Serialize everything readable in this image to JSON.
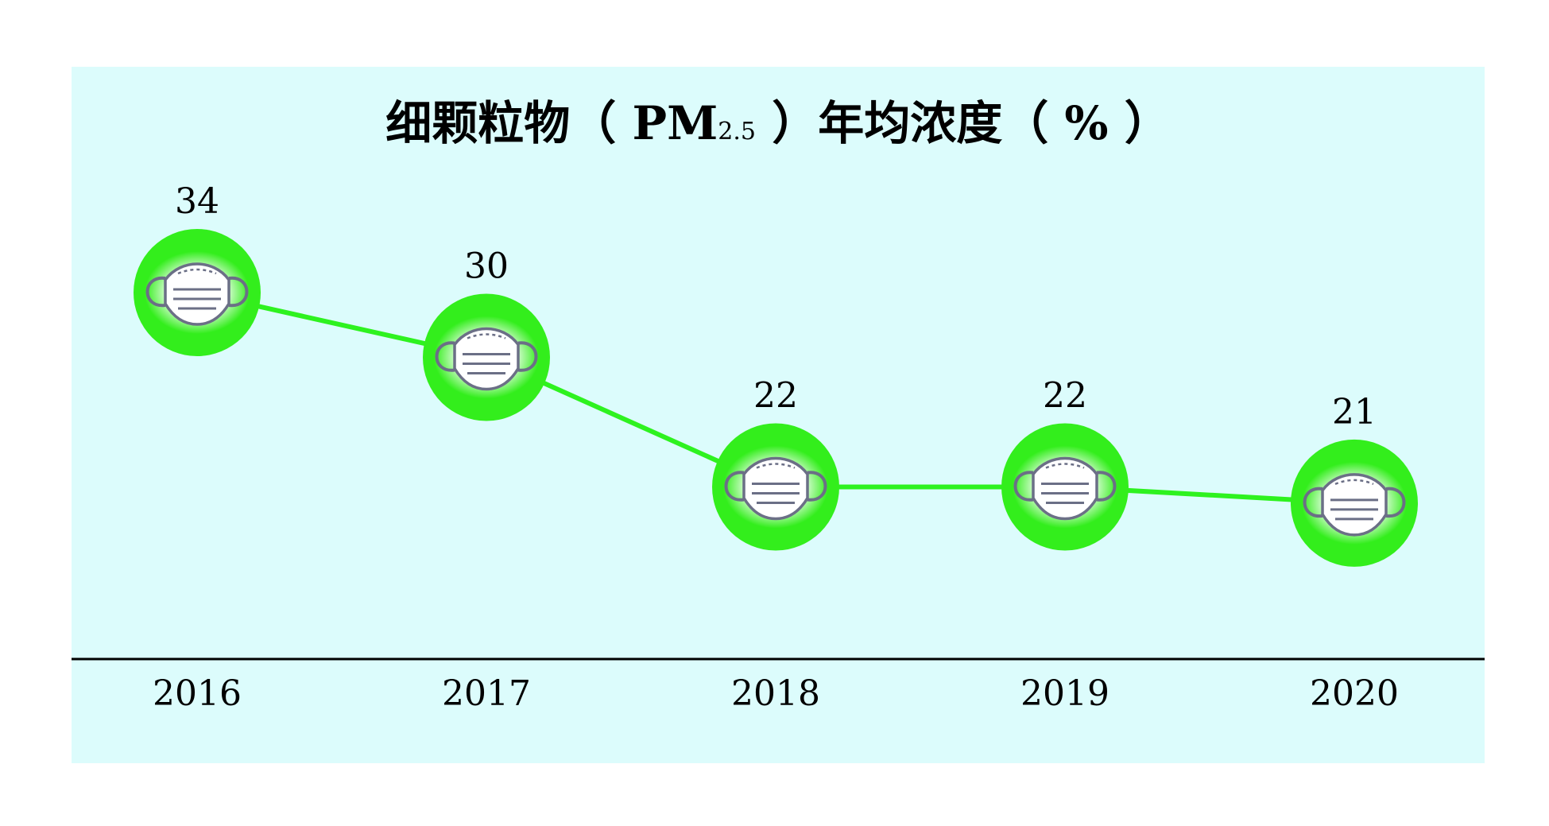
{
  "chart_data": {
    "type": "line",
    "title_main": "细颗粒物（ PM",
    "title_sub": "2.5",
    "title_end": " ）年均浓度（ % ）",
    "categories": [
      "2016",
      "2017",
      "2018",
      "2019",
      "2020"
    ],
    "values": [
      34,
      30,
      22,
      22,
      21
    ],
    "value_labels": [
      "34",
      "30",
      "22",
      "22",
      "21"
    ],
    "marker_icon": "face-mask-icon",
    "colors": {
      "background": "#dcfcfc",
      "line": "#2ef21f",
      "marker": "#33ee1c",
      "axis": "#000000",
      "text": "#000000"
    }
  }
}
